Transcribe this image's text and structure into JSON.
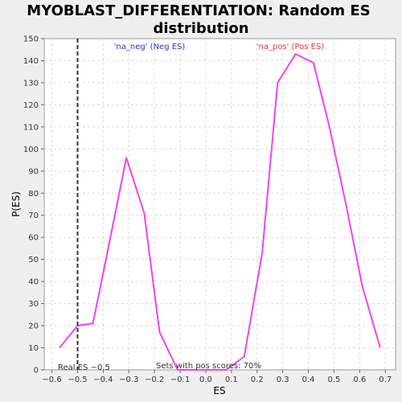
{
  "chart_data": {
    "type": "line",
    "title": "MYOBLAST_DIFFERENTIATION: Random ES distribution",
    "title_lines": [
      "MYOBLAST_DIFFERENTIATION: Random ES",
      "distribution"
    ],
    "xlabel": "ES",
    "ylabel": "P(ES)",
    "xlim": [
      -0.63,
      0.74
    ],
    "ylim": [
      0,
      150
    ],
    "x_ticks": [
      -0.6,
      -0.5,
      -0.4,
      -0.3,
      -0.2,
      -0.1,
      0.0,
      0.1,
      0.2,
      0.3,
      0.4,
      0.5,
      0.6,
      0.7
    ],
    "x_tick_labels": [
      "−0.6",
      "−0.5",
      "−0.4",
      "−0.3",
      "−0.2",
      "−0.1",
      "0.0",
      "0.1",
      "0.2",
      "0.3",
      "0.4",
      "0.5",
      "0.6",
      "0.7"
    ],
    "y_ticks": [
      0,
      10,
      20,
      30,
      40,
      50,
      60,
      70,
      80,
      90,
      100,
      110,
      120,
      130,
      140,
      150
    ],
    "grid": true,
    "series": [
      {
        "color": "#ee44ee",
        "x": [
          -0.57,
          -0.5,
          -0.44,
          -0.37,
          -0.31,
          -0.24,
          -0.18,
          -0.11,
          -0.05,
          0.02,
          0.08,
          0.15,
          0.22,
          0.28,
          0.35,
          0.42,
          0.48,
          0.55,
          0.61,
          0.68
        ],
        "y": [
          10,
          20,
          21,
          61,
          96,
          71,
          17,
          0,
          0,
          0,
          0,
          6,
          53,
          130,
          143,
          139,
          111,
          73,
          38,
          10
        ]
      }
    ],
    "real_es": -0.5,
    "annotations": {
      "neg_label": "'na_neg' (Neg ES)",
      "pos_label": "'na_pos' (Pos ES)",
      "real_es_label": "Real ES −0.5",
      "sets_label": "Sets with pos scores: 70%"
    },
    "colors": {
      "neg": "#3333cc",
      "pos": "#ee3333",
      "line": "#ee44ee",
      "grid": "#dddddd",
      "marker": "#333333"
    }
  }
}
